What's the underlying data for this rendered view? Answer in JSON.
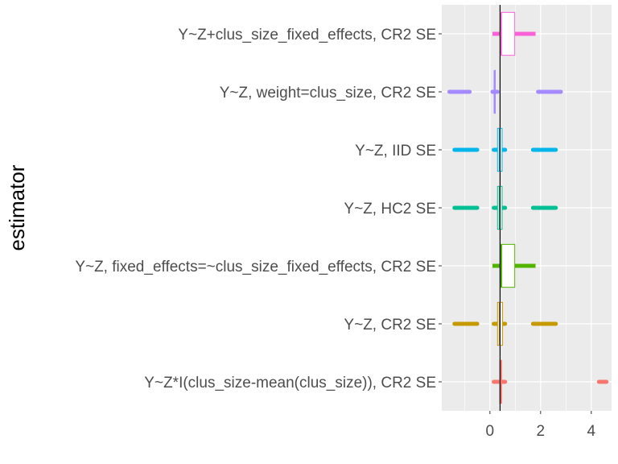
{
  "chart_data": {
    "type": "boxplot",
    "title": "",
    "xlabel": "",
    "ylabel": "estimator",
    "xlim": [
      -1.9,
      4.8
    ],
    "x_ticks": [
      0,
      2,
      4
    ],
    "x_tick_labels": [
      "0",
      "2",
      "4"
    ],
    "grid": true,
    "legend": "none",
    "reference_line_x": 0.4,
    "categories": [
      "Y~Z*I(clus_size-mean(clus_size)), CR2 SE",
      "Y~Z, CR2 SE",
      "Y~Z, fixed_effects=~clus_size_fixed_effects, CR2 SE",
      "Y~Z, HC2 SE",
      "Y~Z, IID SE",
      "Y~Z, weight=clus_size, CR2 SE",
      "Y~Z+clus_size_fixed_effects, CR2 SE"
    ],
    "series": [
      {
        "category": "Y~Z*I(clus_size-mean(clus_size)), CR2 SE",
        "color": "#F8766D",
        "q1": 0.39,
        "median": 0.42,
        "q3": 0.46,
        "whisker_low": 0.39,
        "whisker_high": 0.46,
        "outliers": [
          [
            0.15,
            0.6
          ],
          [
            4.3,
            4.6
          ]
        ]
      },
      {
        "category": "Y~Z, CR2 SE",
        "color": "#C49A00",
        "q1": 0.3,
        "median": 0.38,
        "q3": 0.5,
        "whisker_low": 0.3,
        "whisker_high": 0.5,
        "outliers": [
          [
            -1.4,
            -0.5
          ],
          [
            0.15,
            0.6
          ],
          [
            1.7,
            2.6
          ]
        ]
      },
      {
        "category": "Y~Z, fixed_effects=~clus_size_fixed_effects, CR2 SE",
        "color": "#53B400",
        "q1": 0.4,
        "median": 0.45,
        "q3": 0.98,
        "whisker_low": 0.1,
        "whisker_high": 1.8,
        "outliers": []
      },
      {
        "category": "Y~Z, HC2 SE",
        "color": "#00C094",
        "q1": 0.3,
        "median": 0.38,
        "q3": 0.48,
        "whisker_low": 0.3,
        "whisker_high": 0.48,
        "outliers": [
          [
            -1.4,
            -0.5
          ],
          [
            0.15,
            0.6
          ],
          [
            1.7,
            2.6
          ]
        ]
      },
      {
        "category": "Y~Z, IID SE",
        "color": "#00B6EB",
        "q1": 0.3,
        "median": 0.38,
        "q3": 0.48,
        "whisker_low": 0.3,
        "whisker_high": 0.48,
        "outliers": [
          [
            -1.4,
            -0.5
          ],
          [
            0.15,
            0.6
          ],
          [
            1.7,
            2.6
          ]
        ]
      },
      {
        "category": "Y~Z, weight=clus_size, CR2 SE",
        "color": "#A58AFF",
        "q1": 0.18,
        "median": 0.18,
        "q3": 0.19,
        "whisker_low": 0.18,
        "whisker_high": 0.19,
        "outliers": [
          [
            -1.6,
            -0.8
          ],
          [
            0.1,
            0.3
          ],
          [
            1.9,
            2.8
          ]
        ]
      },
      {
        "category": "Y~Z+clus_size_fixed_effects, CR2 SE",
        "color": "#FB61D7",
        "q1": 0.42,
        "median": 0.44,
        "q3": 0.98,
        "whisker_low": 0.1,
        "whisker_high": 1.8,
        "outliers": []
      }
    ]
  }
}
